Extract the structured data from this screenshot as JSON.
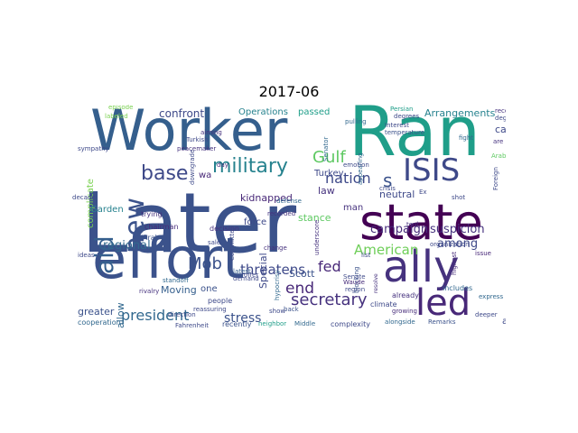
{
  "title": "2017-06",
  "words": [
    {
      "t": "Later",
      "c": "#3b528b"
    },
    {
      "t": "effort",
      "c": "#3b528b"
    },
    {
      "t": "Worker",
      "c": "#355f8d"
    },
    {
      "t": "Ran",
      "c": "#1f9e89"
    },
    {
      "t": "state",
      "c": "#440154"
    },
    {
      "t": "ally",
      "c": "#46327e"
    },
    {
      "t": "led",
      "c": "#482878"
    },
    {
      "t": "ISIS",
      "c": "#3e4989"
    },
    {
      "t": "new",
      "c": "#3b528b"
    },
    {
      "t": "aid",
      "c": "#355f8d"
    },
    {
      "t": "military",
      "c": "#26828e"
    },
    {
      "t": "base",
      "c": "#3e4989"
    },
    {
      "t": "president",
      "c": "#31688e"
    },
    {
      "t": "secretary",
      "c": "#46327e"
    },
    {
      "t": "nation",
      "c": "#3e4989"
    },
    {
      "t": "Gulf",
      "c": "#5ec962"
    },
    {
      "t": "s",
      "c": "#3b528b"
    },
    {
      "t": "Mob",
      "c": "#3b528b"
    },
    {
      "t": "threatens",
      "c": "#3e4989"
    },
    {
      "t": "fed",
      "c": "#482878"
    },
    {
      "t": "end",
      "c": "#482878"
    },
    {
      "t": "Washington",
      "c": "#355f8d"
    },
    {
      "t": "American",
      "c": "#6ece58"
    },
    {
      "t": "campaign",
      "c": "#472c7a"
    },
    {
      "t": "suspicion",
      "c": "#46327e"
    },
    {
      "t": "among",
      "c": "#3e4989"
    },
    {
      "t": "regional",
      "c": "#31688e"
    },
    {
      "t": "confront",
      "c": "#3e4989"
    },
    {
      "t": "Arrangements",
      "c": "#26828e"
    },
    {
      "t": "cast",
      "c": "#3e4989"
    },
    {
      "t": "stress",
      "c": "#3b528b"
    },
    {
      "t": "greater",
      "c": "#3b528b"
    },
    {
      "t": "Moving",
      "c": "#355f8d"
    },
    {
      "t": "neutral",
      "c": "#3e4989"
    },
    {
      "t": "law",
      "c": "#46327e"
    },
    {
      "t": "kidnapped",
      "c": "#482878"
    },
    {
      "t": "Operations",
      "c": "#26828e"
    },
    {
      "t": "passed",
      "c": "#1f9e89"
    },
    {
      "t": "Turkey",
      "c": "#3e4989"
    },
    {
      "t": "force",
      "c": "#3e4989"
    },
    {
      "t": "stance",
      "c": "#5ec962"
    },
    {
      "t": "man",
      "c": "#46327e"
    },
    {
      "t": "Scott",
      "c": "#3b528b"
    },
    {
      "t": "complicate",
      "c": "#7ad151"
    },
    {
      "t": "Garden",
      "c": "#26828e"
    },
    {
      "t": "allow",
      "c": "#31688e"
    },
    {
      "t": "away",
      "c": "#3e4989"
    },
    {
      "t": "Special",
      "c": "#3e4989"
    },
    {
      "t": "one",
      "c": "#3b528b"
    },
    {
      "t": "wa",
      "c": "#482878"
    },
    {
      "t": "trying",
      "c": "#46327e"
    },
    {
      "t": "Arab",
      "c": "#3b528b"
    },
    {
      "t": "people",
      "c": "#3e4989"
    },
    {
      "t": "decision",
      "c": "#46327e"
    },
    {
      "t": "chairman",
      "c": "#472c7a"
    },
    {
      "t": "recently",
      "c": "#3b528b"
    },
    {
      "t": "complexity",
      "c": "#3e4989"
    },
    {
      "t": "cooperation",
      "c": "#31688e"
    },
    {
      "t": "climate",
      "c": "#3e4989"
    },
    {
      "t": "already",
      "c": "#46327e"
    },
    {
      "t": "includes",
      "c": "#31688e"
    },
    {
      "t": "Remarks",
      "c": "#3b528b"
    },
    {
      "t": "alongside",
      "c": "#31688e"
    },
    {
      "t": "direction",
      "c": "#3e4989"
    },
    {
      "t": "rivalry",
      "c": "#46327e"
    },
    {
      "t": "Fahrenheit",
      "c": "#3e4989"
    },
    {
      "t": "Middle",
      "c": "#31688e"
    },
    {
      "t": "neighbor",
      "c": "#1f9e89"
    },
    {
      "t": "growing",
      "c": "#472c7a"
    },
    {
      "t": "express",
      "c": "#31688e"
    },
    {
      "t": "deeper",
      "c": "#3e4989"
    },
    {
      "t": "issue",
      "c": "#482878"
    },
    {
      "t": "organization",
      "c": "#3e4989"
    },
    {
      "t": "highest",
      "c": "#472c7a"
    },
    {
      "t": "tool",
      "c": "#46327e"
    },
    {
      "t": "list",
      "c": "#3e4989"
    },
    {
      "t": "resolve",
      "c": "#46327e"
    },
    {
      "t": "blocking",
      "c": "#3b528b"
    },
    {
      "t": "hypocrisy",
      "c": "#31688e"
    },
    {
      "t": "offer",
      "c": "#3e4989"
    },
    {
      "t": "latest",
      "c": "#355f8d"
    },
    {
      "t": "demand",
      "c": "#3e4989"
    },
    {
      "t": "back",
      "c": "#3b528b"
    },
    {
      "t": "underscore",
      "c": "#46327e"
    },
    {
      "t": "Committee",
      "c": "#3e4989"
    },
    {
      "t": "recorded",
      "c": "#46327e"
    },
    {
      "t": "defense",
      "c": "#31688e"
    },
    {
      "t": "Senate",
      "c": "#3e4989"
    },
    {
      "t": "Waude",
      "c": "#472c7a"
    },
    {
      "t": "crisis",
      "c": "#3e4989"
    },
    {
      "t": "Interest",
      "c": "#3e4989"
    },
    {
      "t": "temperature",
      "c": "#3b528b"
    },
    {
      "t": "pulling",
      "c": "#31688e"
    },
    {
      "t": "Persian",
      "c": "#1f9e89"
    },
    {
      "t": "degrees",
      "c": "#3e4989"
    },
    {
      "t": "record",
      "c": "#46327e"
    },
    {
      "t": "degree",
      "c": "#3e4989"
    },
    {
      "t": "fight",
      "c": "#31688e"
    },
    {
      "t": "are",
      "c": "#46327e"
    },
    {
      "t": "Arabia",
      "c": "#5ec962"
    },
    {
      "t": "Foreign",
      "c": "#3e4989"
    },
    {
      "t": "peacemaker",
      "c": "#46327e"
    },
    {
      "t": "Turkish",
      "c": "#3e4989"
    },
    {
      "t": "day",
      "c": "#472c7a"
    },
    {
      "t": "episode",
      "c": "#7ad151"
    },
    {
      "t": "sympathy",
      "c": "#3e4989"
    },
    {
      "t": "decade",
      "c": "#3e4989"
    },
    {
      "t": "reassuring",
      "c": "#3e4989"
    },
    {
      "t": "standoff",
      "c": "#31688e"
    },
    {
      "t": "ideas",
      "c": "#3e4989"
    },
    {
      "t": "sale",
      "c": "#3e4989"
    },
    {
      "t": "change",
      "c": "#46327e"
    },
    {
      "t": "show",
      "c": "#3e4989"
    },
    {
      "t": "appearing",
      "c": "#31688e"
    },
    {
      "t": "Ex",
      "c": "#3e4989"
    },
    {
      "t": "shot",
      "c": "#3e4989"
    },
    {
      "t": "labeled",
      "c": "#7ad151"
    },
    {
      "t": "aiming",
      "c": "#46327e"
    },
    {
      "t": "downgrade",
      "c": "#3e4989"
    },
    {
      "t": "Senator",
      "c": "#31688e"
    },
    {
      "t": "region",
      "c": "#3e4989"
    },
    {
      "t": "emotion",
      "c": "#3e4989"
    }
  ]
}
